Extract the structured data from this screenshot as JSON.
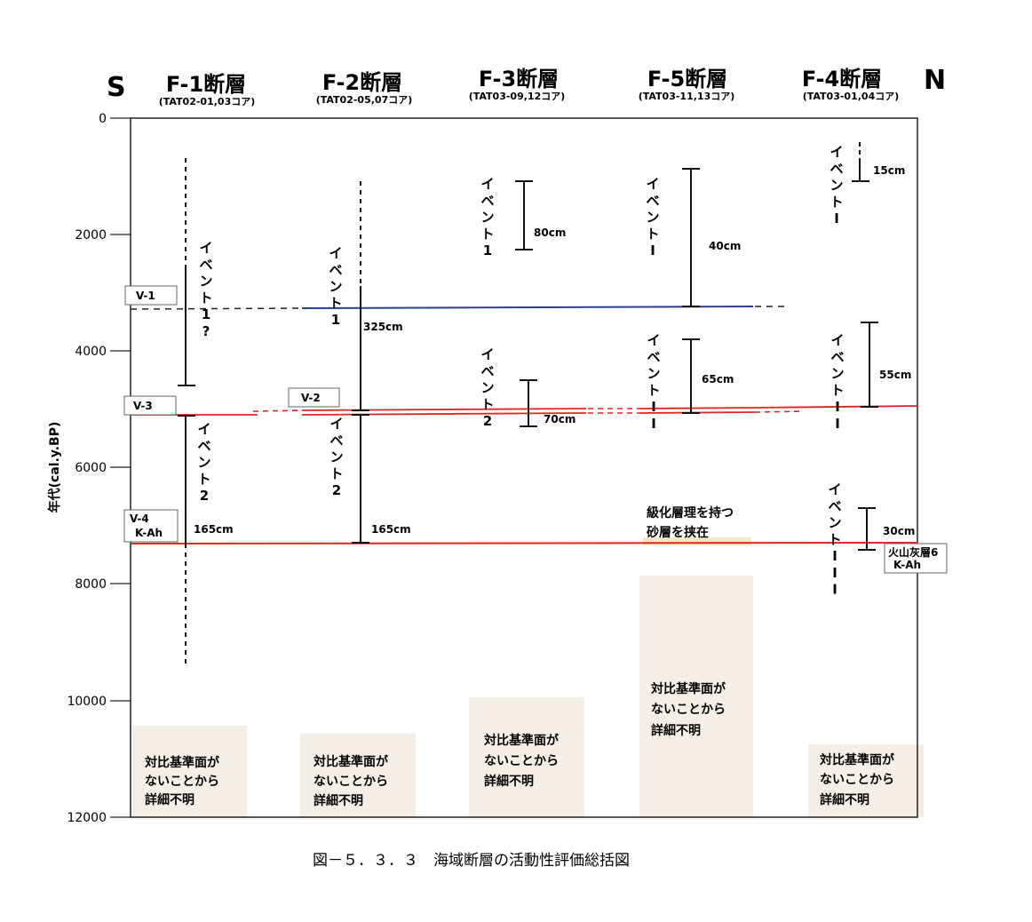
{
  "direction": {
    "left": "S",
    "right": "N"
  },
  "columns": [
    {
      "key": "f1",
      "title": "F-1断層",
      "cores": "(TAT02-01,03コア)"
    },
    {
      "key": "f2",
      "title": "F-2断層",
      "cores": "(TAT02-05,07コア)"
    },
    {
      "key": "f3",
      "title": "F-3断層",
      "cores": "(TAT03-09,12コア)"
    },
    {
      "key": "f5",
      "title": "F-5断層",
      "cores": "(TAT03-11,13コア)"
    },
    {
      "key": "f4",
      "title": "F-4断層",
      "cores": "(TAT03-01,04コア)"
    }
  ],
  "axis": {
    "label": "年代(cal.y.BP)",
    "min": 0,
    "max": 12000,
    "ticks": [
      "0",
      "2000",
      "4000",
      "6000",
      "8000",
      "10000",
      "12000"
    ],
    "tick_values": [
      0,
      2000,
      4000,
      6000,
      8000,
      10000,
      12000
    ]
  },
  "markers": {
    "v1": "V-1",
    "v2": "V-2",
    "v3": "V-3",
    "v4": "V-4",
    "kah": "K-Ah",
    "volcanic": "火山灰層6",
    "volcanic_sub": "K-Ah"
  },
  "horizons": {
    "v1_age": 3300,
    "v3_age": 5050,
    "kah_age": 7300,
    "v1_color": "#2b3f8f",
    "red_color": "#e0261e"
  },
  "events": {
    "f1": [
      {
        "label": "イベント1?",
        "top": 2500,
        "bottom": 4600,
        "dotted_top": 650
      },
      {
        "label": "イベント2",
        "size": "165cm",
        "top": 5100,
        "bottom": 7300,
        "dotted_bottom": 9400
      }
    ],
    "f2": [
      {
        "label": "イベント1",
        "size": "325cm",
        "top": 3000,
        "bottom": 5050,
        "dotted_top": 1050
      },
      {
        "label": "イベント2",
        "size": "165cm",
        "top": 5050,
        "bottom": 7300
      }
    ],
    "f3": [
      {
        "label": "イベント1",
        "size": "80cm",
        "top": 1050,
        "bottom": 2250
      },
      {
        "label": "イベント2",
        "size": "70cm",
        "top": 4500,
        "bottom": 5300
      }
    ],
    "f5": [
      {
        "label": "イベントI",
        "size": "40cm",
        "top": 850,
        "bottom": 3300
      },
      {
        "label": "イベントII",
        "size": "65cm",
        "top": 3750,
        "bottom": 5100
      }
    ],
    "f4": [
      {
        "label": "イベントI",
        "size": "15cm",
        "top": 400,
        "bottom": 1050
      },
      {
        "label": "イベントII",
        "size": "55cm",
        "top": 3500,
        "bottom": 4950
      },
      {
        "label": "イベントIII",
        "size": "30cm",
        "top": 6700,
        "bottom": 7400
      }
    ]
  },
  "notes": {
    "f5_sand": [
      "級化層理を持つ",
      "砂層を挟在"
    ],
    "unknown": [
      "対比基準面が",
      "ないことから",
      "詳細不明"
    ]
  },
  "caption": "図－５．３．３　海域断層の活動性評価総括図"
}
